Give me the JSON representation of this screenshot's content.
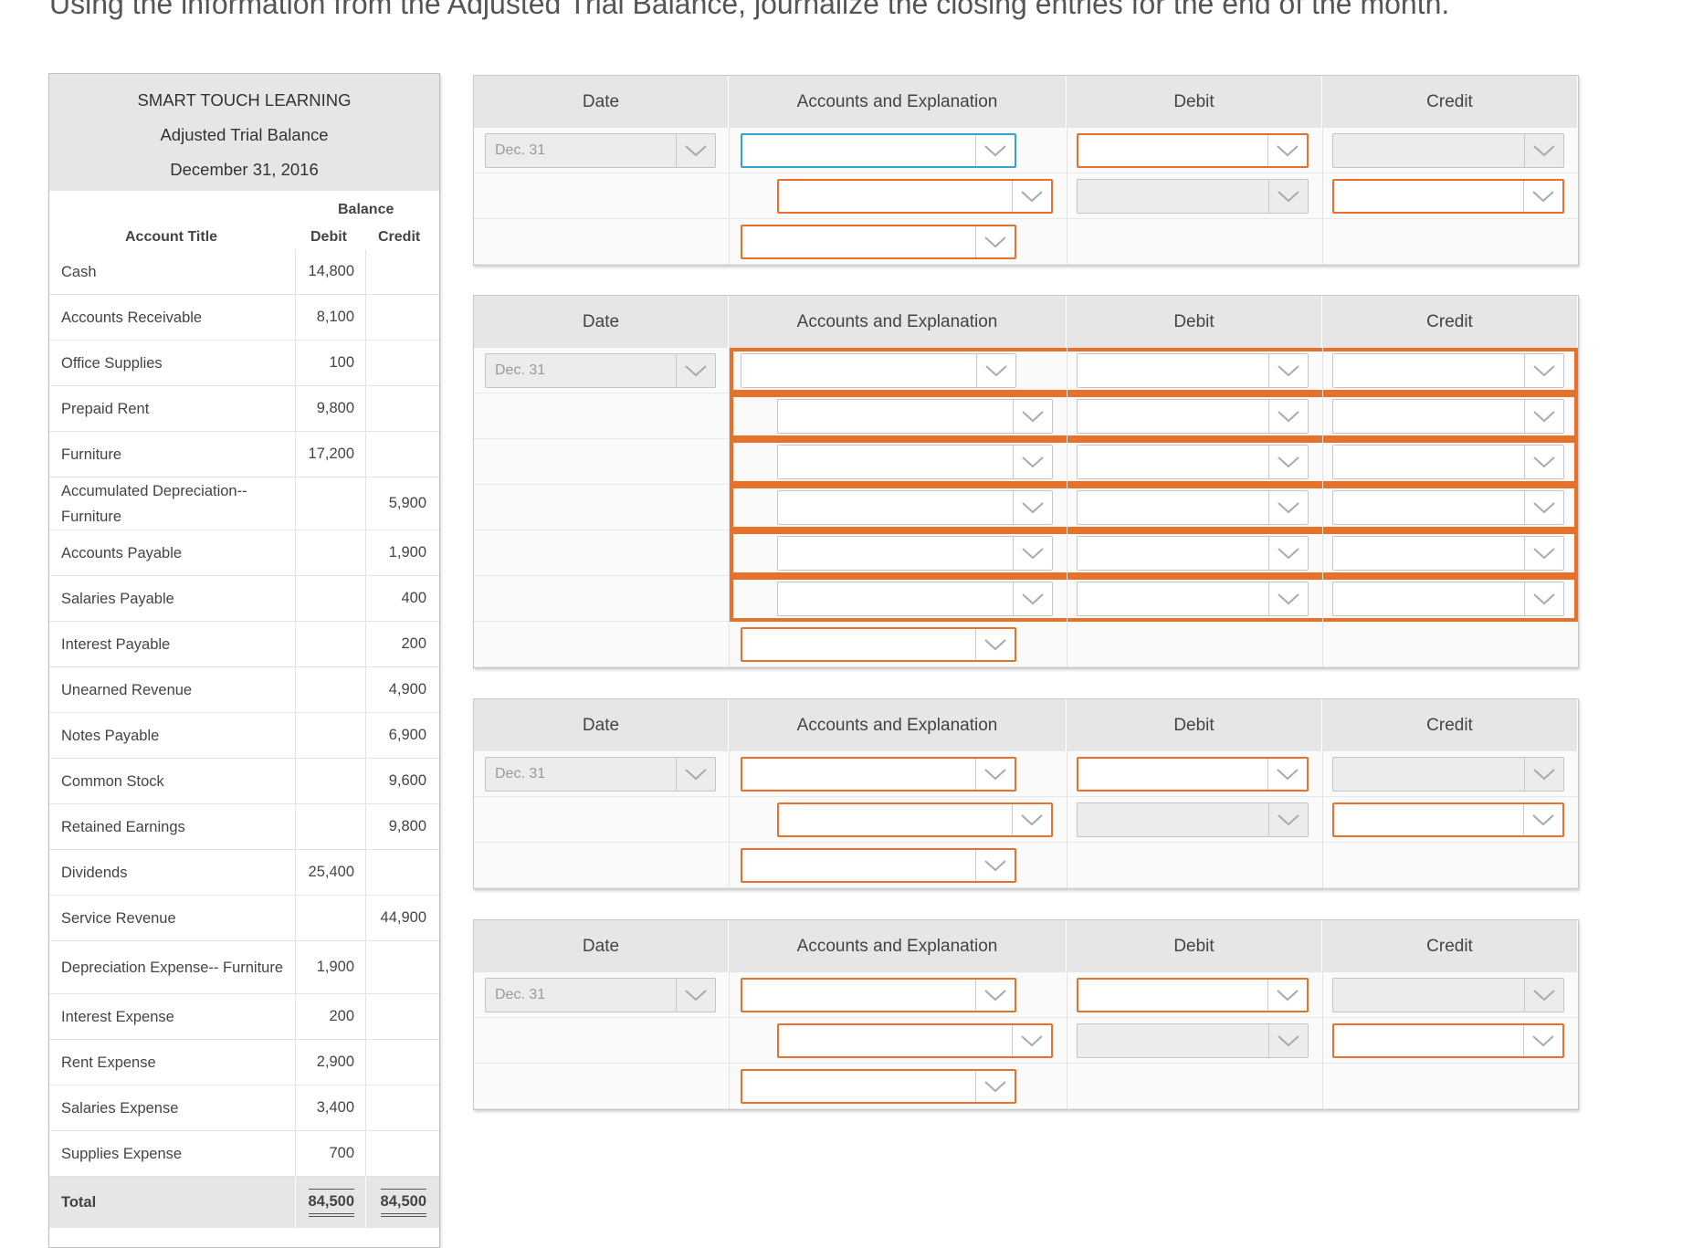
{
  "instruction": "Using the information from the Adjusted Trial Balance, journalize the closing entries for the end of the month.",
  "trial_balance": {
    "company": "SMART TOUCH LEARNING",
    "title": "Adjusted Trial Balance",
    "date": "December 31, 2016",
    "col_balance": "Balance",
    "col_account": "Account Title",
    "col_debit": "Debit",
    "col_credit": "Credit",
    "rows": [
      {
        "account": "Cash",
        "debit": "14,800",
        "credit": ""
      },
      {
        "account": "Accounts Receivable",
        "debit": "8,100",
        "credit": ""
      },
      {
        "account": "Office Supplies",
        "debit": "100",
        "credit": ""
      },
      {
        "account": "Prepaid Rent",
        "debit": "9,800",
        "credit": ""
      },
      {
        "account": "Furniture",
        "debit": "17,200",
        "credit": ""
      },
      {
        "account": "Accumulated Depreciation-- Furniture",
        "debit": "",
        "credit": "5,900"
      },
      {
        "account": "Accounts Payable",
        "debit": "",
        "credit": "1,900"
      },
      {
        "account": "Salaries Payable",
        "debit": "",
        "credit": "400"
      },
      {
        "account": "Interest Payable",
        "debit": "",
        "credit": "200"
      },
      {
        "account": "Unearned Revenue",
        "debit": "",
        "credit": "4,900"
      },
      {
        "account": "Notes Payable",
        "debit": "",
        "credit": "6,900"
      },
      {
        "account": "Common Stock",
        "debit": "",
        "credit": "9,600"
      },
      {
        "account": "Retained Earnings",
        "debit": "",
        "credit": "9,800"
      },
      {
        "account": "Dividends",
        "debit": "25,400",
        "credit": ""
      },
      {
        "account": "Service Revenue",
        "debit": "",
        "credit": "44,900"
      },
      {
        "account": "Depreciation Expense-- Furniture",
        "debit": "1,900",
        "credit": ""
      },
      {
        "account": "Interest Expense",
        "debit": "200",
        "credit": ""
      },
      {
        "account": "Rent Expense",
        "debit": "2,900",
        "credit": ""
      },
      {
        "account": "Salaries Expense",
        "debit": "3,400",
        "credit": ""
      },
      {
        "account": "Supplies Expense",
        "debit": "700",
        "credit": ""
      }
    ],
    "total_label": "Total",
    "total_debit": "84,500",
    "total_credit": "84,500"
  },
  "journal": {
    "col_date": "Date",
    "col_accounts": "Accounts and Explanation",
    "col_debit": "Debit",
    "col_credit": "Credit",
    "date_value": "Dec. 31",
    "colors": {
      "required": "#e8712a",
      "focused": "#32a5cf"
    }
  }
}
